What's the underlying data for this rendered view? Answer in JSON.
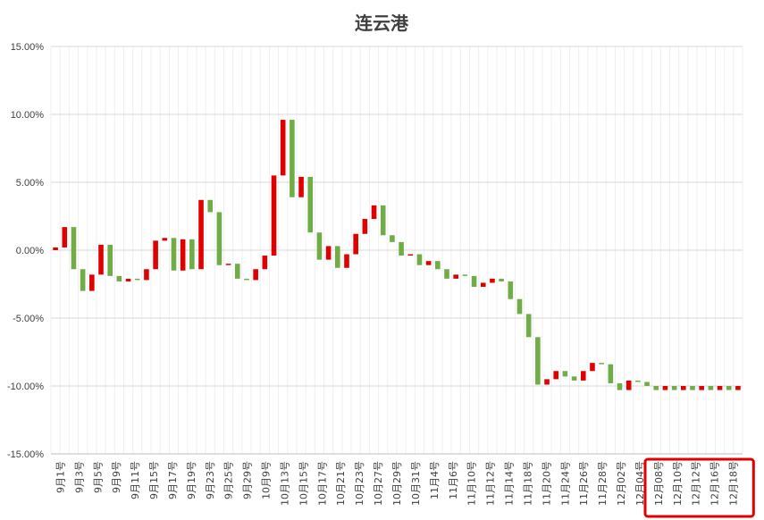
{
  "chart_data": {
    "type": "candlestick",
    "title": "连云港",
    "xlabel": "",
    "ylabel": "",
    "ylim": [
      -15,
      15
    ],
    "y_ticks": [
      "15.00%",
      "10.00%",
      "5.00%",
      "0.00%",
      "-5.00%",
      "-10.00%",
      "-15.00%"
    ],
    "y_tick_values": [
      15,
      10,
      5,
      0,
      -5,
      -10,
      -15
    ],
    "grid": true,
    "legend": "none",
    "colors": {
      "up": "#e00000",
      "down": "#70ad47",
      "highlight": "#e00000"
    },
    "x_tick_labels": [
      "9月1号",
      "9月3号",
      "9月5号",
      "9月9号",
      "9月11号",
      "9月15号",
      "9月17号",
      "9月19号",
      "9月23号",
      "9月25号",
      "9月29号",
      "10月9号",
      "10月13号",
      "10月15号",
      "10月17号",
      "10月21号",
      "10月23号",
      "10月27号",
      "10月29号",
      "10月31号",
      "11月4号",
      "11月6号",
      "11月10号",
      "11月12号",
      "11月14号",
      "11月18号",
      "11月20号",
      "11月24号",
      "11月26号",
      "11月28号",
      "12月02号",
      "12月04号",
      "12月08号",
      "12月10号",
      "12月12号",
      "12月16号",
      "12月18号"
    ],
    "candles": [
      {
        "open": 0.0,
        "close": 0.2
      },
      {
        "open": 0.2,
        "close": 1.7
      },
      {
        "open": 1.7,
        "close": -1.4
      },
      {
        "open": -1.4,
        "close": -3.0
      },
      {
        "open": -3.0,
        "close": -1.8
      },
      {
        "open": -1.8,
        "close": 0.4
      },
      {
        "open": 0.4,
        "close": -1.9
      },
      {
        "open": -1.9,
        "close": -2.3
      },
      {
        "open": -2.3,
        "close": -2.1
      },
      {
        "open": -2.1,
        "close": -2.2
      },
      {
        "open": -2.2,
        "close": -1.4
      },
      {
        "open": -1.4,
        "close": 0.7
      },
      {
        "open": 0.7,
        "close": 0.9
      },
      {
        "open": 0.9,
        "close": -1.5
      },
      {
        "open": -1.5,
        "close": 0.8
      },
      {
        "open": 0.8,
        "close": -1.4
      },
      {
        "open": -1.4,
        "close": 3.7
      },
      {
        "open": 3.7,
        "close": 2.8
      },
      {
        "open": 2.8,
        "close": -1.1
      },
      {
        "open": -1.1,
        "close": -1.0
      },
      {
        "open": -1.0,
        "close": -2.1
      },
      {
        "open": -2.1,
        "close": -2.2
      },
      {
        "open": -2.2,
        "close": -1.4
      },
      {
        "open": -1.4,
        "close": -0.4
      },
      {
        "open": -0.4,
        "close": 5.5
      },
      {
        "open": 5.5,
        "close": 9.6
      },
      {
        "open": 9.6,
        "close": 3.9
      },
      {
        "open": 3.9,
        "close": 5.4
      },
      {
        "open": 5.4,
        "close": 1.3
      },
      {
        "open": 1.3,
        "close": -0.7
      },
      {
        "open": -0.7,
        "close": 0.3
      },
      {
        "open": 0.3,
        "close": -1.3
      },
      {
        "open": -1.3,
        "close": -0.3
      },
      {
        "open": -0.3,
        "close": 1.2
      },
      {
        "open": 1.2,
        "close": 2.3
      },
      {
        "open": 2.3,
        "close": 3.3
      },
      {
        "open": 3.3,
        "close": 1.1
      },
      {
        "open": 1.1,
        "close": 0.6
      },
      {
        "open": 0.6,
        "close": -0.4
      },
      {
        "open": -0.4,
        "close": -0.3
      },
      {
        "open": -0.3,
        "close": -1.1
      },
      {
        "open": -1.1,
        "close": -0.8
      },
      {
        "open": -0.8,
        "close": -1.4
      },
      {
        "open": -1.4,
        "close": -2.1
      },
      {
        "open": -2.1,
        "close": -1.8
      },
      {
        "open": -1.8,
        "close": -1.9
      },
      {
        "open": -1.9,
        "close": -2.7
      },
      {
        "open": -2.7,
        "close": -2.4
      },
      {
        "open": -2.4,
        "close": -2.1
      },
      {
        "open": -2.1,
        "close": -2.3
      },
      {
        "open": -2.3,
        "close": -3.6
      },
      {
        "open": -3.6,
        "close": -4.7
      },
      {
        "open": -4.7,
        "close": -6.4
      },
      {
        "open": -6.4,
        "close": -9.9
      },
      {
        "open": -9.9,
        "close": -9.5
      },
      {
        "open": -9.5,
        "close": -8.9
      },
      {
        "open": -8.9,
        "close": -9.3
      },
      {
        "open": -9.3,
        "close": -9.6
      },
      {
        "open": -9.6,
        "close": -8.9
      },
      {
        "open": -8.9,
        "close": -8.3
      },
      {
        "open": -8.3,
        "close": -8.4
      },
      {
        "open": -8.4,
        "close": -9.8
      },
      {
        "open": -9.8,
        "close": -10.3
      },
      {
        "open": -10.3,
        "close": -9.6
      },
      {
        "open": -9.6,
        "close": -9.7
      },
      {
        "open": -9.7,
        "close": -10.0
      },
      {
        "open": -10.0,
        "close": -10.3
      },
      {
        "open": -10.3,
        "close": -10.0
      },
      {
        "open": -10.0,
        "close": -10.3
      },
      {
        "open": -10.3,
        "close": -10.0
      },
      {
        "open": -10.0,
        "close": -10.3
      },
      {
        "open": -10.3,
        "close": -10.0
      },
      {
        "open": -10.0,
        "close": -10.3
      },
      {
        "open": -10.3,
        "close": -10.0
      },
      {
        "open": -10.0,
        "close": -10.3
      },
      {
        "open": -10.3,
        "close": -10.0
      }
    ],
    "highlight_range": [
      "12月08号",
      "12月18号"
    ]
  }
}
